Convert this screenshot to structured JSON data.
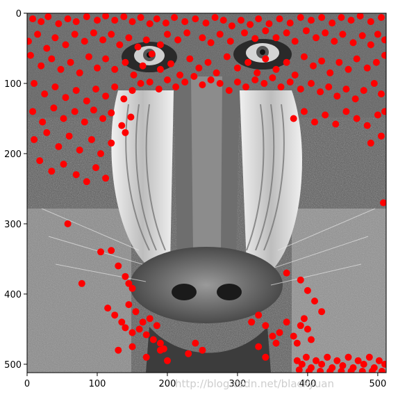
{
  "chart_data": {
    "type": "scatter",
    "title": "",
    "xlabel": "",
    "ylabel": "",
    "xlim": [
      0,
      512
    ],
    "ylim": [
      512,
      0
    ],
    "x_ticks": [
      0,
      100,
      200,
      300,
      400,
      500
    ],
    "y_ticks": [
      0,
      100,
      200,
      300,
      400,
      500
    ],
    "grid": false,
    "background": "grayscale mandrill (baboon) photograph",
    "marker_color": "#ff0000",
    "series": [
      {
        "points": [
          [
            8,
            8
          ],
          [
            20,
            12
          ],
          [
            30,
            5
          ],
          [
            45,
            15
          ],
          [
            58,
            8
          ],
          [
            70,
            12
          ],
          [
            85,
            5
          ],
          [
            100,
            10
          ],
          [
            112,
            4
          ],
          [
            125,
            10
          ],
          [
            138,
            5
          ],
          [
            150,
            12
          ],
          [
            162,
            6
          ],
          [
            175,
            15
          ],
          [
            185,
            8
          ],
          [
            198,
            14
          ],
          [
            210,
            6
          ],
          [
            225,
            12
          ],
          [
            240,
            8
          ],
          [
            255,
            14
          ],
          [
            268,
            6
          ],
          [
            280,
            10
          ],
          [
            292,
            18
          ],
          [
            305,
            10
          ],
          [
            318,
            16
          ],
          [
            330,
            8
          ],
          [
            345,
            15
          ],
          [
            360,
            8
          ],
          [
            375,
            14
          ],
          [
            390,
            6
          ],
          [
            405,
            10
          ],
          [
            420,
            6
          ],
          [
            435,
            14
          ],
          [
            448,
            6
          ],
          [
            462,
            10
          ],
          [
            475,
            4
          ],
          [
            490,
            12
          ],
          [
            505,
            6
          ],
          [
            2,
            40
          ],
          [
            15,
            30
          ],
          [
            28,
            50
          ],
          [
            40,
            35
          ],
          [
            55,
            45
          ],
          [
            68,
            30
          ],
          [
            82,
            40
          ],
          [
            95,
            28
          ],
          [
            108,
            38
          ],
          [
            120,
            30
          ],
          [
            132,
            45
          ],
          [
            145,
            35
          ],
          [
            158,
            48
          ],
          [
            170,
            38
          ],
          [
            190,
            45
          ],
          [
            200,
            30
          ],
          [
            215,
            38
          ],
          [
            228,
            28
          ],
          [
            250,
            35
          ],
          [
            262,
            42
          ],
          [
            275,
            30
          ],
          [
            290,
            40
          ],
          [
            310,
            28
          ],
          [
            325,
            36
          ],
          [
            340,
            25
          ],
          [
            355,
            35
          ],
          [
            370,
            28
          ],
          [
            382,
            40
          ],
          [
            398,
            25
          ],
          [
            412,
            35
          ],
          [
            425,
            28
          ],
          [
            438,
            40
          ],
          [
            450,
            30
          ],
          [
            465,
            42
          ],
          [
            478,
            32
          ],
          [
            490,
            45
          ],
          [
            500,
            30
          ],
          [
            510,
            38
          ],
          [
            5,
            60
          ],
          [
            20,
            75
          ],
          [
            35,
            65
          ],
          [
            48,
            80
          ],
          [
            62,
            70
          ],
          [
            75,
            85
          ],
          [
            88,
            62
          ],
          [
            100,
            78
          ],
          [
            112,
            65
          ],
          [
            125,
            80
          ],
          [
            140,
            70
          ],
          [
            152,
            88
          ],
          [
            165,
            75
          ],
          [
            178,
            58
          ],
          [
            190,
            80
          ],
          [
            205,
            72
          ],
          [
            218,
            88
          ],
          [
            232,
            65
          ],
          [
            245,
            78
          ],
          [
            258,
            70
          ],
          [
            270,
            85
          ],
          [
            285,
            62
          ],
          [
            300,
            78
          ],
          [
            315,
            70
          ],
          [
            328,
            85
          ],
          [
            340,
            65
          ],
          [
            355,
            80
          ],
          [
            370,
            70
          ],
          [
            382,
            88
          ],
          [
            395,
            62
          ],
          [
            408,
            75
          ],
          [
            420,
            68
          ],
          [
            432,
            85
          ],
          [
            445,
            70
          ],
          [
            458,
            80
          ],
          [
            470,
            65
          ],
          [
            485,
            78
          ],
          [
            498,
            70
          ],
          [
            510,
            60
          ],
          [
            10,
            100
          ],
          [
            25,
            115
          ],
          [
            40,
            105
          ],
          [
            55,
            120
          ],
          [
            70,
            110
          ],
          [
            85,
            125
          ],
          [
            98,
            108
          ],
          [
            112,
            118
          ],
          [
            125,
            105
          ],
          [
            138,
            122
          ],
          [
            150,
            110
          ],
          [
            162,
            100
          ],
          [
            175,
            98
          ],
          [
            188,
            108
          ],
          [
            200,
            95
          ],
          [
            212,
            105
          ],
          [
            225,
            98
          ],
          [
            238,
            90
          ],
          [
            250,
            102
          ],
          [
            262,
            95
          ],
          [
            275,
            100
          ],
          [
            288,
            110
          ],
          [
            300,
            98
          ],
          [
            312,
            105
          ],
          [
            325,
            95
          ],
          [
            338,
            100
          ],
          [
            350,
            92
          ],
          [
            362,
            105
          ],
          [
            375,
            98
          ],
          [
            390,
            108
          ],
          [
            405,
            100
          ],
          [
            418,
            112
          ],
          [
            430,
            105
          ],
          [
            442,
            118
          ],
          [
            455,
            108
          ],
          [
            468,
            122
          ],
          [
            480,
            110
          ],
          [
            495,
            100
          ],
          [
            505,
            115
          ],
          [
            8,
            140
          ],
          [
            22,
            155
          ],
          [
            38,
            135
          ],
          [
            52,
            150
          ],
          [
            68,
            140
          ],
          [
            82,
            155
          ],
          [
            95,
            138
          ],
          [
            108,
            150
          ],
          [
            120,
            142
          ],
          [
            135,
            160
          ],
          [
            148,
            148
          ],
          [
            380,
            150
          ],
          [
            395,
            140
          ],
          [
            410,
            155
          ],
          [
            425,
            145
          ],
          [
            440,
            158
          ],
          [
            455,
            140
          ],
          [
            470,
            150
          ],
          [
            485,
            160
          ],
          [
            500,
            145
          ],
          [
            510,
            140
          ],
          [
            10,
            180
          ],
          [
            28,
            170
          ],
          [
            45,
            190
          ],
          [
            60,
            175
          ],
          [
            75,
            195
          ],
          [
            92,
            180
          ],
          [
            105,
            200
          ],
          [
            120,
            185
          ],
          [
            140,
            170
          ],
          [
            490,
            185
          ],
          [
            505,
            175
          ],
          [
            18,
            210
          ],
          [
            35,
            225
          ],
          [
            52,
            215
          ],
          [
            70,
            230
          ],
          [
            85,
            240
          ],
          [
            98,
            220
          ],
          [
            112,
            235
          ],
          [
            508,
            270
          ],
          [
            58,
            300
          ],
          [
            105,
            340
          ],
          [
            120,
            338
          ],
          [
            130,
            360
          ],
          [
            140,
            375
          ],
          [
            145,
            385
          ],
          [
            150,
            392
          ],
          [
            78,
            385
          ],
          [
            370,
            370
          ],
          [
            390,
            380
          ],
          [
            400,
            395
          ],
          [
            410,
            410
          ],
          [
            420,
            425
          ],
          [
            115,
            420
          ],
          [
            125,
            430
          ],
          [
            135,
            440
          ],
          [
            140,
            448
          ],
          [
            150,
            455
          ],
          [
            160,
            450
          ],
          [
            165,
            440
          ],
          [
            170,
            458
          ],
          [
            180,
            465
          ],
          [
            190,
            470
          ],
          [
            195,
            478
          ],
          [
            185,
            445
          ],
          [
            175,
            435
          ],
          [
            155,
            425
          ],
          [
            145,
            415
          ],
          [
            320,
            440
          ],
          [
            330,
            430
          ],
          [
            340,
            445
          ],
          [
            350,
            460
          ],
          [
            355,
            470
          ],
          [
            360,
            455
          ],
          [
            370,
            440
          ],
          [
            380,
            460
          ],
          [
            385,
            470
          ],
          [
            390,
            445
          ],
          [
            395,
            435
          ],
          [
            400,
            450
          ],
          [
            405,
            465
          ],
          [
            130,
            480
          ],
          [
            150,
            475
          ],
          [
            170,
            490
          ],
          [
            190,
            480
          ],
          [
            200,
            495
          ],
          [
            230,
            485
          ],
          [
            240,
            470
          ],
          [
            250,
            480
          ],
          [
            330,
            475
          ],
          [
            340,
            490
          ],
          [
            385,
            495
          ],
          [
            392,
            500
          ],
          [
            398,
            490
          ],
          [
            405,
            505
          ],
          [
            412,
            495
          ],
          [
            420,
            500
          ],
          [
            428,
            490
          ],
          [
            435,
            505
          ],
          [
            442,
            495
          ],
          [
            450,
            502
          ],
          [
            458,
            490
          ],
          [
            465,
            505
          ],
          [
            472,
            495
          ],
          [
            480,
            500
          ],
          [
            488,
            490
          ],
          [
            495,
            505
          ],
          [
            502,
            495
          ],
          [
            510,
            500
          ],
          [
            388,
            508
          ],
          [
            402,
            510
          ],
          [
            418,
            510
          ],
          [
            432,
            510
          ],
          [
            448,
            510
          ],
          [
            462,
            510
          ],
          [
            478,
            510
          ],
          [
            492,
            510
          ],
          [
            506,
            510
          ]
        ]
      }
    ],
    "watermark": "http://blog.csdn.net/blackyuan"
  }
}
